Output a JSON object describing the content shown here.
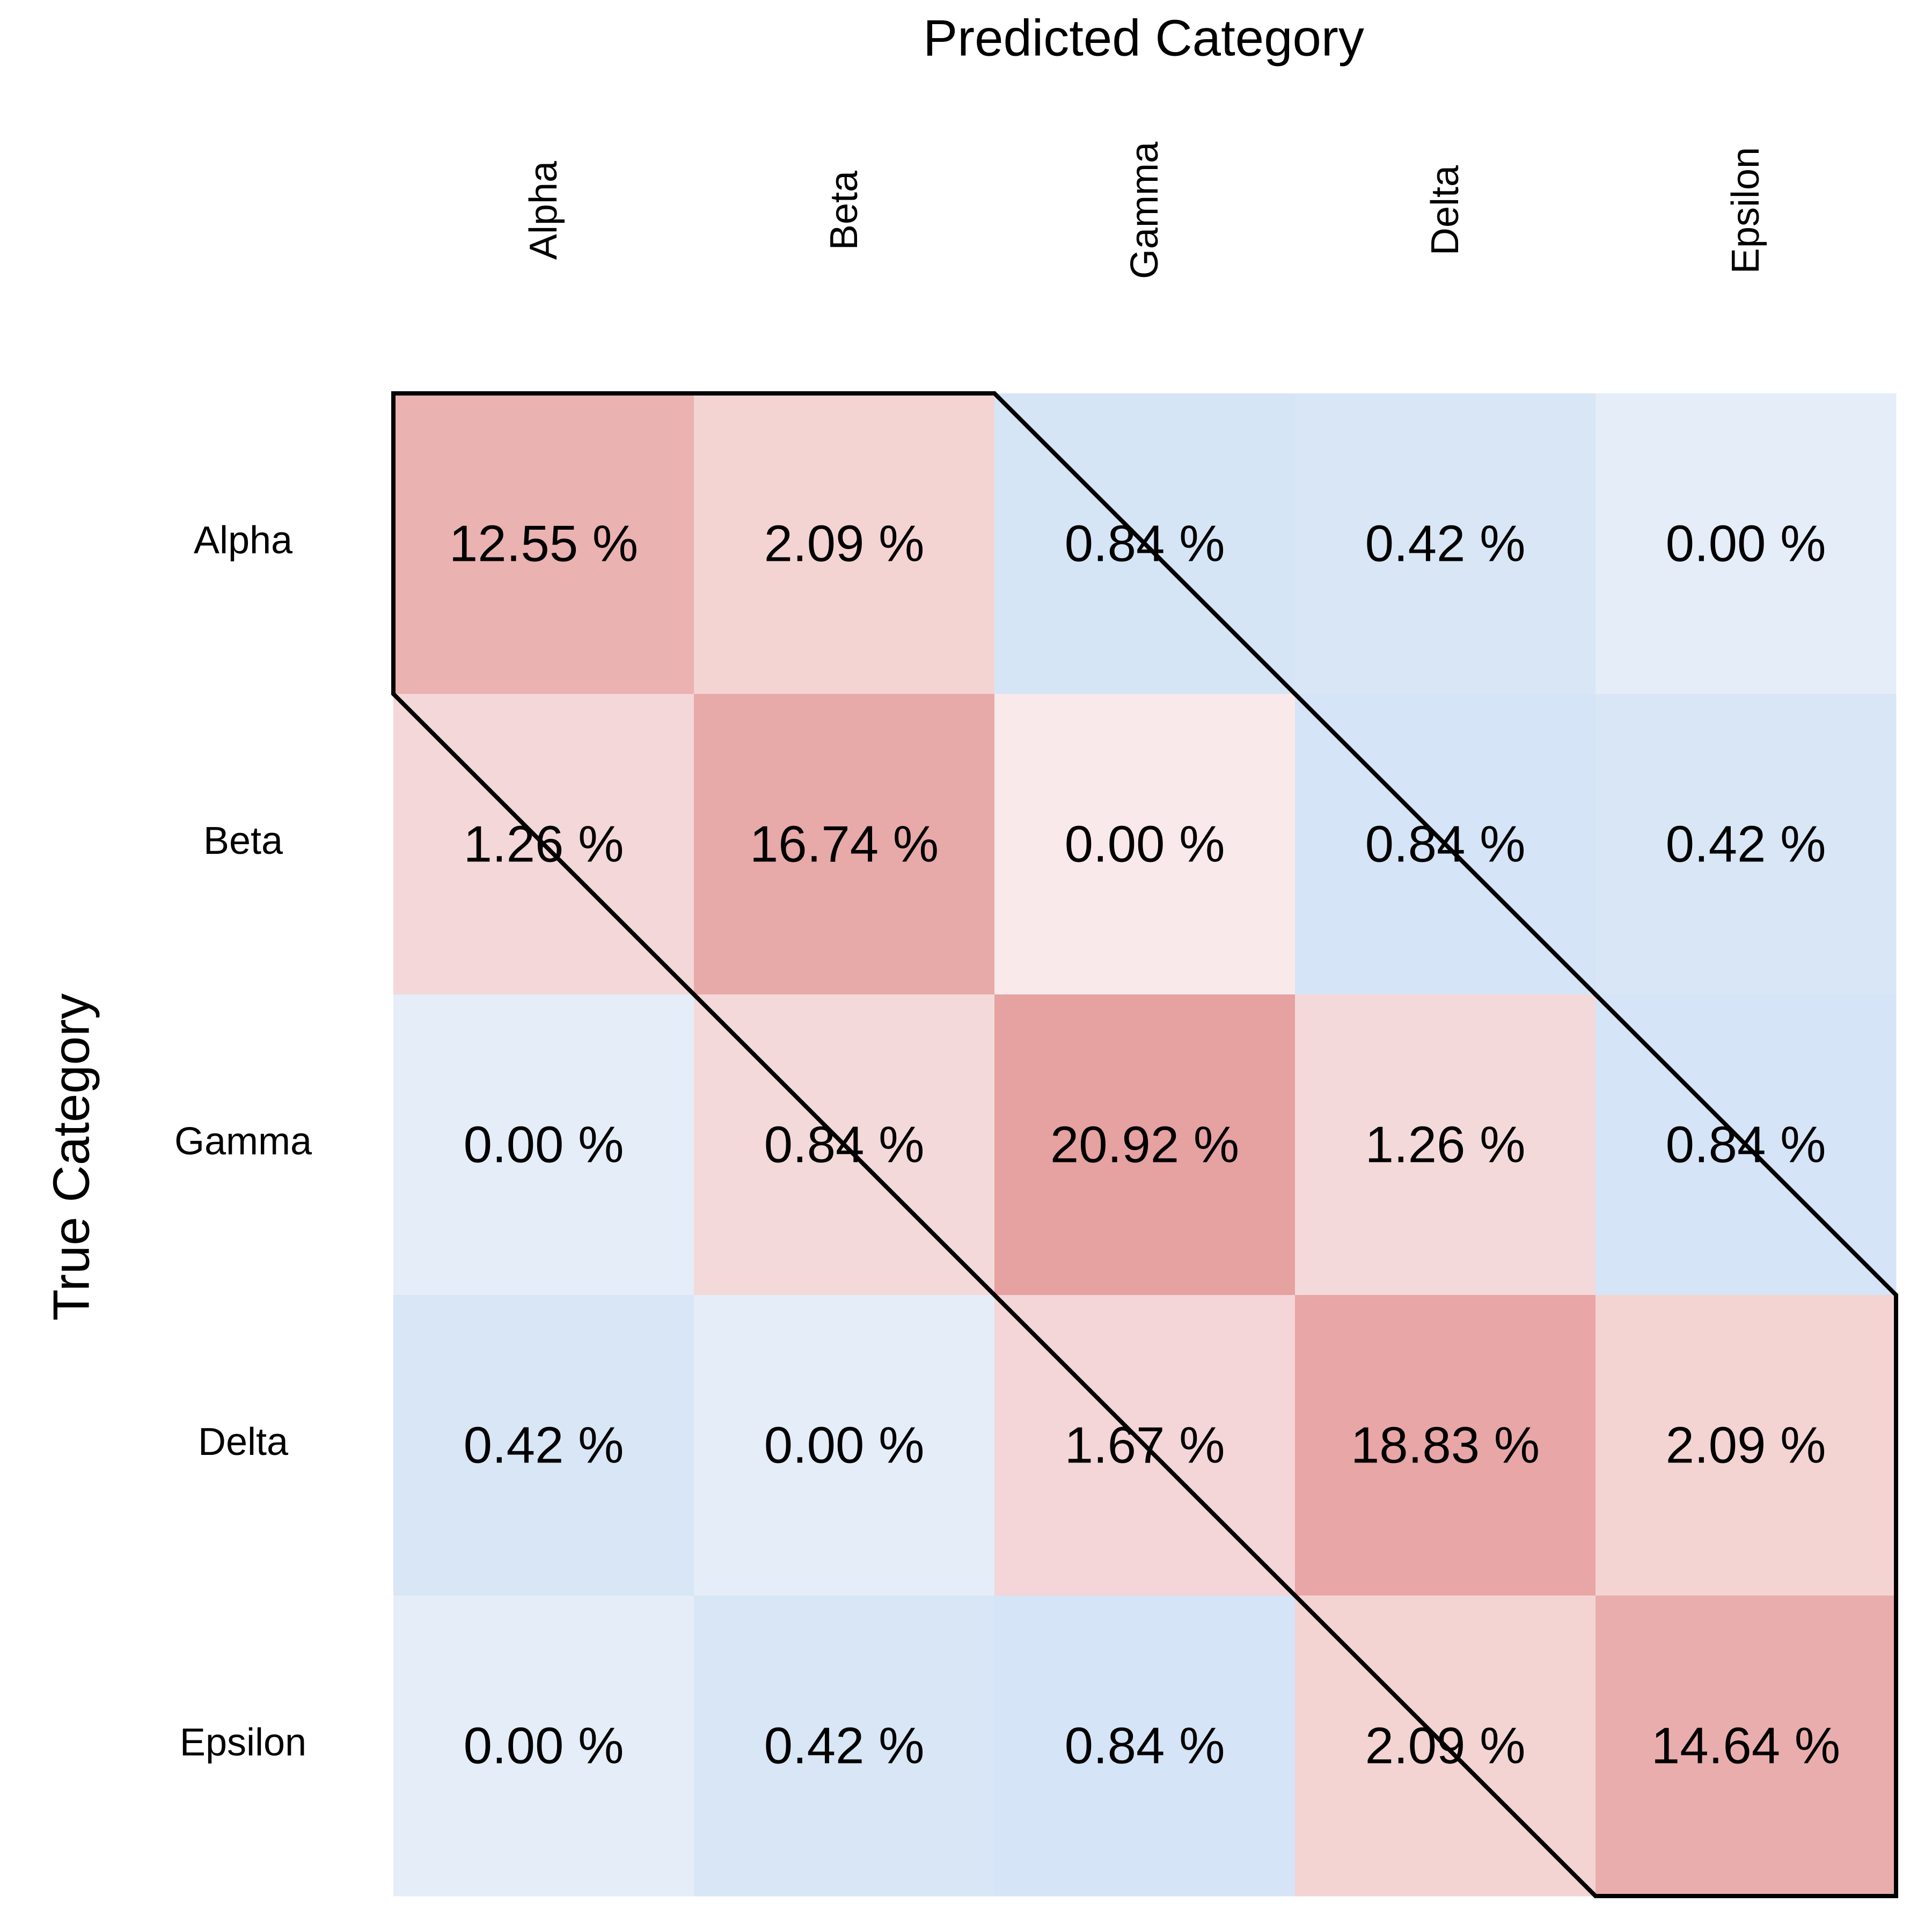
{
  "chart_data": {
    "type": "heatmap",
    "title": "",
    "xlabel": "Predicted Category",
    "ylabel": "True Category",
    "x_categories": [
      "Alpha",
      "Beta",
      "Gamma",
      "Delta",
      "Epsilon"
    ],
    "y_categories": [
      "Alpha",
      "Beta",
      "Gamma",
      "Delta",
      "Epsilon"
    ],
    "values": [
      [
        12.55,
        2.09,
        0.84,
        0.42,
        0.0
      ],
      [
        1.26,
        16.74,
        0.0,
        0.84,
        0.42
      ],
      [
        0.0,
        0.84,
        20.92,
        1.26,
        0.84
      ],
      [
        0.42,
        0.0,
        1.67,
        18.83,
        2.09
      ],
      [
        0.0,
        0.42,
        0.84,
        2.09,
        14.64
      ]
    ],
    "cell_labels": [
      [
        "12.55 %",
        "2.09 %",
        "0.84 %",
        "0.42 %",
        "0.00 %"
      ],
      [
        "1.26 %",
        "16.74 %",
        "0.00 %",
        "0.84 %",
        "0.42 %"
      ],
      [
        "0.00 %",
        "0.84 %",
        "20.92 %",
        "1.26 %",
        "0.84 %"
      ],
      [
        "0.42 %",
        "0.00 %",
        "1.67 %",
        "18.83 %",
        "2.09 %"
      ],
      [
        "0.00 %",
        "0.42 %",
        "0.84 %",
        "2.09 %",
        "14.64 %"
      ]
    ],
    "cell_colors": [
      [
        "#eab2b1",
        "#f3d4d3",
        "#d5e5f6",
        "#d8e6f5",
        "#e4edf8"
      ],
      [
        "#f4d7d8",
        "#e8a9a9",
        "#f9e9ea",
        "#d5e4f6",
        "#d8e6f5"
      ],
      [
        "#e4edf8",
        "#f4d9da",
        "#e6a1a1",
        "#f4d9da",
        "#d5e4f6"
      ],
      [
        "#d8e6f5",
        "#e4edf8",
        "#f4d5d8",
        "#e8a6a6",
        "#f3d4d3"
      ],
      [
        "#e4edf8",
        "#d8e6f5",
        "#d5e4f6",
        "#f3d4d3",
        "#eaadad"
      ]
    ],
    "highlight_region": "cells with |row - col| <= 1 outlined in black",
    "grid": false,
    "legend": "none"
  }
}
